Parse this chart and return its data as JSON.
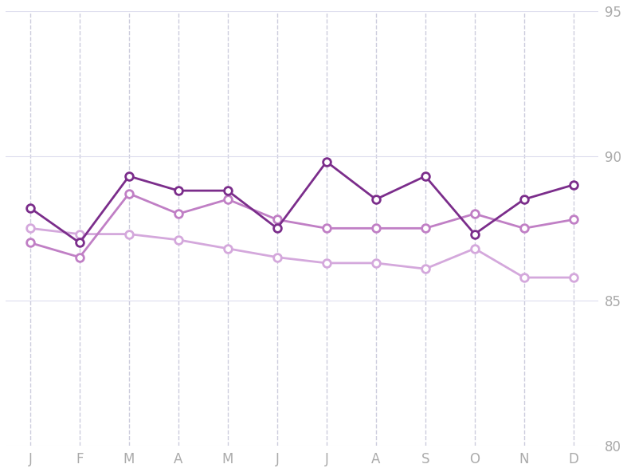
{
  "months": [
    "J",
    "F",
    "M",
    "A",
    "M",
    "J",
    "J",
    "A",
    "S",
    "O",
    "N",
    "D"
  ],
  "series_2022": [
    88.2,
    87.0,
    89.3,
    88.8,
    88.8,
    87.5,
    89.8,
    88.5,
    89.3,
    87.3,
    88.5,
    89.0
  ],
  "series_2021": [
    87.0,
    86.5,
    88.7,
    88.0,
    88.5,
    87.8,
    87.5,
    87.5,
    87.5,
    88.0,
    87.5,
    87.8
  ],
  "series_2020": [
    87.5,
    87.3,
    87.3,
    87.1,
    86.8,
    86.5,
    86.3,
    86.3,
    86.1,
    86.8,
    85.8,
    85.8
  ],
  "color_2022": "#7B2D8B",
  "color_2021": "#C07FC5",
  "color_2020": "#D4A8DC",
  "ylim": [
    80,
    95
  ],
  "yticks": [
    80,
    85,
    90,
    95
  ],
  "background_color": "#ffffff",
  "grid_color_x": "#ccccdd",
  "grid_color_y": "#ddddee"
}
